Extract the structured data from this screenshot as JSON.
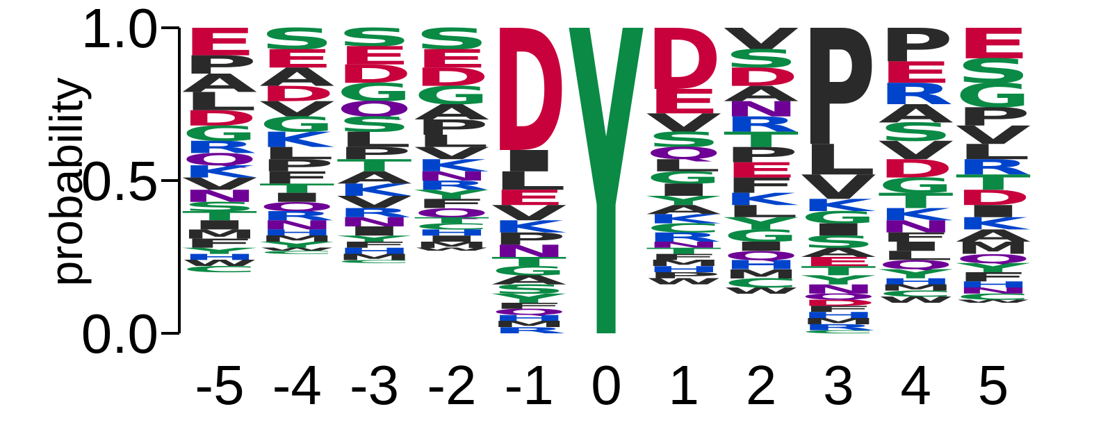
{
  "chart_data": {
    "type": "sequence-logo",
    "ylabel": "probability",
    "ylim": [
      0,
      1
    ],
    "yticks": [
      "0.0",
      "0.5",
      "1.0"
    ],
    "colors": {
      "acidic": "#c8003c",
      "polar": "#0a8a45",
      "basic": "#0044cc",
      "amide": "#6e0096",
      "hydrophobic": "#2a2a2a"
    },
    "columns": [
      {
        "position": "-5",
        "letters": [
          {
            "aa": "E",
            "p": 0.09
          },
          {
            "aa": "P",
            "p": 0.06
          },
          {
            "aa": "A",
            "p": 0.06
          },
          {
            "aa": "L",
            "p": 0.06
          },
          {
            "aa": "D",
            "p": 0.05
          },
          {
            "aa": "G",
            "p": 0.05
          },
          {
            "aa": "R",
            "p": 0.04
          },
          {
            "aa": "Q",
            "p": 0.04
          },
          {
            "aa": "K",
            "p": 0.04
          },
          {
            "aa": "V",
            "p": 0.04
          },
          {
            "aa": "N",
            "p": 0.04
          },
          {
            "aa": "S",
            "p": 0.03
          },
          {
            "aa": "T",
            "p": 0.03
          },
          {
            "aa": "I",
            "p": 0.03
          },
          {
            "aa": "M",
            "p": 0.03
          },
          {
            "aa": "F",
            "p": 0.03
          },
          {
            "aa": "Y",
            "p": 0.02
          },
          {
            "aa": "H",
            "p": 0.02
          },
          {
            "aa": "W",
            "p": 0.02
          },
          {
            "aa": "C",
            "p": 0.02
          }
        ]
      },
      {
        "position": "-4",
        "letters": [
          {
            "aa": "S",
            "p": 0.07
          },
          {
            "aa": "E",
            "p": 0.06
          },
          {
            "aa": "A",
            "p": 0.06
          },
          {
            "aa": "D",
            "p": 0.05
          },
          {
            "aa": "V",
            "p": 0.05
          },
          {
            "aa": "G",
            "p": 0.05
          },
          {
            "aa": "K",
            "p": 0.05
          },
          {
            "aa": "L",
            "p": 0.04
          },
          {
            "aa": "P",
            "p": 0.04
          },
          {
            "aa": "F",
            "p": 0.04
          },
          {
            "aa": "T",
            "p": 0.03
          },
          {
            "aa": "I",
            "p": 0.03
          },
          {
            "aa": "Q",
            "p": 0.03
          },
          {
            "aa": "R",
            "p": 0.03
          },
          {
            "aa": "N",
            "p": 0.03
          },
          {
            "aa": "H",
            "p": 0.02
          },
          {
            "aa": "M",
            "p": 0.02
          },
          {
            "aa": "Y",
            "p": 0.02
          },
          {
            "aa": "W",
            "p": 0.01
          },
          {
            "aa": "C",
            "p": 0.01
          }
        ]
      },
      {
        "position": "-3",
        "letters": [
          {
            "aa": "S",
            "p": 0.06
          },
          {
            "aa": "E",
            "p": 0.06
          },
          {
            "aa": "D",
            "p": 0.06
          },
          {
            "aa": "G",
            "p": 0.06
          },
          {
            "aa": "Q",
            "p": 0.05
          },
          {
            "aa": "S",
            "p": 0.05
          },
          {
            "aa": "L",
            "p": 0.05
          },
          {
            "aa": "P",
            "p": 0.04
          },
          {
            "aa": "T",
            "p": 0.04
          },
          {
            "aa": "A",
            "p": 0.04
          },
          {
            "aa": "K",
            "p": 0.04
          },
          {
            "aa": "V",
            "p": 0.04
          },
          {
            "aa": "R",
            "p": 0.03
          },
          {
            "aa": "N",
            "p": 0.03
          },
          {
            "aa": "I",
            "p": 0.03
          },
          {
            "aa": "Y",
            "p": 0.02
          },
          {
            "aa": "F",
            "p": 0.02
          },
          {
            "aa": "H",
            "p": 0.02
          },
          {
            "aa": "M",
            "p": 0.02
          },
          {
            "aa": "C",
            "p": 0.01
          }
        ]
      },
      {
        "position": "-2",
        "letters": [
          {
            "aa": "S",
            "p": 0.07
          },
          {
            "aa": "E",
            "p": 0.06
          },
          {
            "aa": "D",
            "p": 0.06
          },
          {
            "aa": "G",
            "p": 0.06
          },
          {
            "aa": "A",
            "p": 0.05
          },
          {
            "aa": "P",
            "p": 0.05
          },
          {
            "aa": "L",
            "p": 0.04
          },
          {
            "aa": "V",
            "p": 0.04
          },
          {
            "aa": "K",
            "p": 0.04
          },
          {
            "aa": "N",
            "p": 0.03
          },
          {
            "aa": "R",
            "p": 0.03
          },
          {
            "aa": "Y",
            "p": 0.03
          },
          {
            "aa": "F",
            "p": 0.03
          },
          {
            "aa": "Q",
            "p": 0.03
          },
          {
            "aa": "T",
            "p": 0.02
          },
          {
            "aa": "C",
            "p": 0.02
          },
          {
            "aa": "H",
            "p": 0.02
          },
          {
            "aa": "I",
            "p": 0.02
          },
          {
            "aa": "M",
            "p": 0.02
          },
          {
            "aa": "W",
            "p": 0.01
          }
        ]
      },
      {
        "position": "-1",
        "letters": [
          {
            "aa": "D",
            "p": 0.4
          },
          {
            "aa": "I",
            "p": 0.07
          },
          {
            "aa": "L",
            "p": 0.06
          },
          {
            "aa": "E",
            "p": 0.05
          },
          {
            "aa": "V",
            "p": 0.05
          },
          {
            "aa": "K",
            "p": 0.04
          },
          {
            "aa": "P",
            "p": 0.04
          },
          {
            "aa": "N",
            "p": 0.04
          },
          {
            "aa": "T",
            "p": 0.03
          },
          {
            "aa": "G",
            "p": 0.03
          },
          {
            "aa": "A",
            "p": 0.03
          },
          {
            "aa": "S",
            "p": 0.03
          },
          {
            "aa": "Y",
            "p": 0.03
          },
          {
            "aa": "F",
            "p": 0.02
          },
          {
            "aa": "Q",
            "p": 0.02
          },
          {
            "aa": "H",
            "p": 0.02
          },
          {
            "aa": "M",
            "p": 0.02
          },
          {
            "aa": "R",
            "p": 0.02
          }
        ]
      },
      {
        "position": "0",
        "letters": [
          {
            "aa": "Y",
            "p": 1.0
          }
        ]
      },
      {
        "position": "1",
        "letters": [
          {
            "aa": "D",
            "p": 0.2
          },
          {
            "aa": "E",
            "p": 0.08
          },
          {
            "aa": "V",
            "p": 0.06
          },
          {
            "aa": "S",
            "p": 0.05
          },
          {
            "aa": "Q",
            "p": 0.04
          },
          {
            "aa": "L",
            "p": 0.04
          },
          {
            "aa": "G",
            "p": 0.04
          },
          {
            "aa": "I",
            "p": 0.04
          },
          {
            "aa": "Y",
            "p": 0.03
          },
          {
            "aa": "A",
            "p": 0.03
          },
          {
            "aa": "K",
            "p": 0.03
          },
          {
            "aa": "C",
            "p": 0.03
          },
          {
            "aa": "R",
            "p": 0.03
          },
          {
            "aa": "N",
            "p": 0.02
          },
          {
            "aa": "T",
            "p": 0.02
          },
          {
            "aa": "F",
            "p": 0.02
          },
          {
            "aa": "M",
            "p": 0.02
          },
          {
            "aa": "H",
            "p": 0.02
          },
          {
            "aa": "P",
            "p": 0.02
          },
          {
            "aa": "W",
            "p": 0.02
          }
        ]
      },
      {
        "position": "2",
        "letters": [
          {
            "aa": "V",
            "p": 0.07
          },
          {
            "aa": "S",
            "p": 0.06
          },
          {
            "aa": "D",
            "p": 0.06
          },
          {
            "aa": "A",
            "p": 0.05
          },
          {
            "aa": "N",
            "p": 0.05
          },
          {
            "aa": "R",
            "p": 0.05
          },
          {
            "aa": "T",
            "p": 0.05
          },
          {
            "aa": "P",
            "p": 0.05
          },
          {
            "aa": "E",
            "p": 0.05
          },
          {
            "aa": "F",
            "p": 0.05
          },
          {
            "aa": "K",
            "p": 0.04
          },
          {
            "aa": "L",
            "p": 0.04
          },
          {
            "aa": "Y",
            "p": 0.04
          },
          {
            "aa": "G",
            "p": 0.04
          },
          {
            "aa": "I",
            "p": 0.03
          },
          {
            "aa": "Q",
            "p": 0.03
          },
          {
            "aa": "H",
            "p": 0.03
          },
          {
            "aa": "M",
            "p": 0.03
          },
          {
            "aa": "C",
            "p": 0.03
          },
          {
            "aa": "W",
            "p": 0.02
          }
        ]
      },
      {
        "position": "3",
        "letters": [
          {
            "aa": "P",
            "p": 0.38
          },
          {
            "aa": "L",
            "p": 0.1
          },
          {
            "aa": "V",
            "p": 0.08
          },
          {
            "aa": "K",
            "p": 0.04
          },
          {
            "aa": "G",
            "p": 0.04
          },
          {
            "aa": "I",
            "p": 0.04
          },
          {
            "aa": "S",
            "p": 0.04
          },
          {
            "aa": "A",
            "p": 0.03
          },
          {
            "aa": "E",
            "p": 0.03
          },
          {
            "aa": "T",
            "p": 0.03
          },
          {
            "aa": "Y",
            "p": 0.03
          },
          {
            "aa": "N",
            "p": 0.03
          },
          {
            "aa": "Q",
            "p": 0.02
          },
          {
            "aa": "D",
            "p": 0.02
          },
          {
            "aa": "F",
            "p": 0.02
          },
          {
            "aa": "H",
            "p": 0.02
          },
          {
            "aa": "M",
            "p": 0.02
          },
          {
            "aa": "R",
            "p": 0.02
          },
          {
            "aa": "C",
            "p": 0.01
          }
        ]
      },
      {
        "position": "4",
        "letters": [
          {
            "aa": "P",
            "p": 0.11
          },
          {
            "aa": "E",
            "p": 0.07
          },
          {
            "aa": "R",
            "p": 0.07
          },
          {
            "aa": "A",
            "p": 0.06
          },
          {
            "aa": "S",
            "p": 0.06
          },
          {
            "aa": "V",
            "p": 0.06
          },
          {
            "aa": "D",
            "p": 0.06
          },
          {
            "aa": "G",
            "p": 0.05
          },
          {
            "aa": "T",
            "p": 0.05
          },
          {
            "aa": "K",
            "p": 0.04
          },
          {
            "aa": "N",
            "p": 0.04
          },
          {
            "aa": "F",
            "p": 0.03
          },
          {
            "aa": "I",
            "p": 0.03
          },
          {
            "aa": "L",
            "p": 0.03
          },
          {
            "aa": "Q",
            "p": 0.03
          },
          {
            "aa": "Y",
            "p": 0.03
          },
          {
            "aa": "H",
            "p": 0.02
          },
          {
            "aa": "M",
            "p": 0.02
          },
          {
            "aa": "C",
            "p": 0.02
          },
          {
            "aa": "W",
            "p": 0.02
          }
        ]
      },
      {
        "position": "5",
        "letters": [
          {
            "aa": "E",
            "p": 0.1
          },
          {
            "aa": "S",
            "p": 0.08
          },
          {
            "aa": "G",
            "p": 0.08
          },
          {
            "aa": "P",
            "p": 0.06
          },
          {
            "aa": "V",
            "p": 0.06
          },
          {
            "aa": "L",
            "p": 0.05
          },
          {
            "aa": "R",
            "p": 0.05
          },
          {
            "aa": "T",
            "p": 0.05
          },
          {
            "aa": "D",
            "p": 0.05
          },
          {
            "aa": "I",
            "p": 0.04
          },
          {
            "aa": "K",
            "p": 0.04
          },
          {
            "aa": "A",
            "p": 0.04
          },
          {
            "aa": "M",
            "p": 0.04
          },
          {
            "aa": "Q",
            "p": 0.03
          },
          {
            "aa": "Y",
            "p": 0.03
          },
          {
            "aa": "F",
            "p": 0.03
          },
          {
            "aa": "H",
            "p": 0.02
          },
          {
            "aa": "N",
            "p": 0.02
          },
          {
            "aa": "C",
            "p": 0.02
          },
          {
            "aa": "W",
            "p": 0.01
          }
        ]
      }
    ]
  }
}
